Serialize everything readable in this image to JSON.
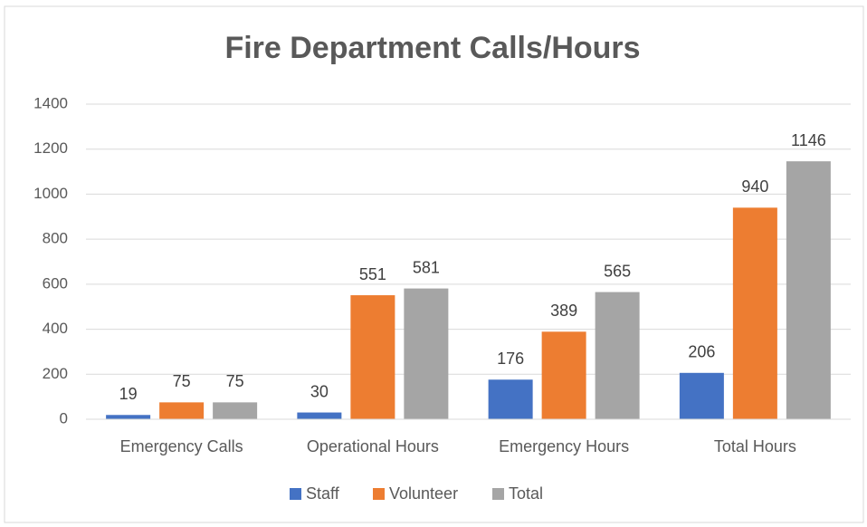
{
  "chart_data": {
    "type": "bar",
    "title": "Fire Department Calls/Hours",
    "categories": [
      "Emergency Calls",
      "Operational Hours",
      "Emergency Hours",
      "Total Hours"
    ],
    "series": [
      {
        "name": "Staff",
        "color": "#4472c4",
        "values": [
          19,
          30,
          176,
          206
        ]
      },
      {
        "name": "Volunteer",
        "color": "#ed7d31",
        "values": [
          75,
          551,
          389,
          940
        ]
      },
      {
        "name": "Total",
        "color": "#a5a5a5",
        "values": [
          75,
          581,
          565,
          1146
        ]
      }
    ],
    "ylim": [
      0,
      1400
    ],
    "yticks": [
      0,
      200,
      400,
      600,
      800,
      1000,
      1200,
      1400
    ],
    "grid": true,
    "legend": "bottom"
  }
}
